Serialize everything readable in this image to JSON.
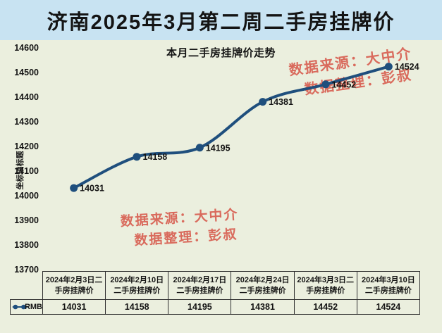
{
  "page_title": "济南2025年3月第二周二手房挂牌价",
  "watermark": {
    "source": "数据来源：大中介",
    "editor": "数据整理：彭叔"
  },
  "chart_data": {
    "type": "line",
    "title": "本月二手房挂牌价走势",
    "ylabel": "坐标轴标题",
    "xlabel": "",
    "categories": [
      "2024年2月3日二手房挂牌价",
      "2024年2月10日二手房挂牌价",
      "2024年2月17日二手房挂牌价",
      "2024年2月24日二手房挂牌价",
      "2024年3月3日二手房挂牌价",
      "2024年3月10日二手房挂牌价"
    ],
    "series": [
      {
        "name": "RMB",
        "values": [
          14031,
          14158,
          14195,
          14381,
          14452,
          14524
        ]
      }
    ],
    "ylim": [
      13700,
      14600
    ],
    "ytick_step": 100,
    "yticks": [
      13700,
      13800,
      13900,
      14000,
      14100,
      14200,
      14300,
      14400,
      14500,
      14600
    ],
    "grid": false,
    "smooth": true,
    "point_labels_visible": true,
    "legend_position": "data-table-left"
  },
  "colors": {
    "line": "#1f4f7d",
    "watermark": "#d96a5c",
    "title_bar_bg": "#c8e3f2",
    "chart_bg": "#ebefde",
    "text": "#141414",
    "table_border": "#2f2f2f"
  }
}
